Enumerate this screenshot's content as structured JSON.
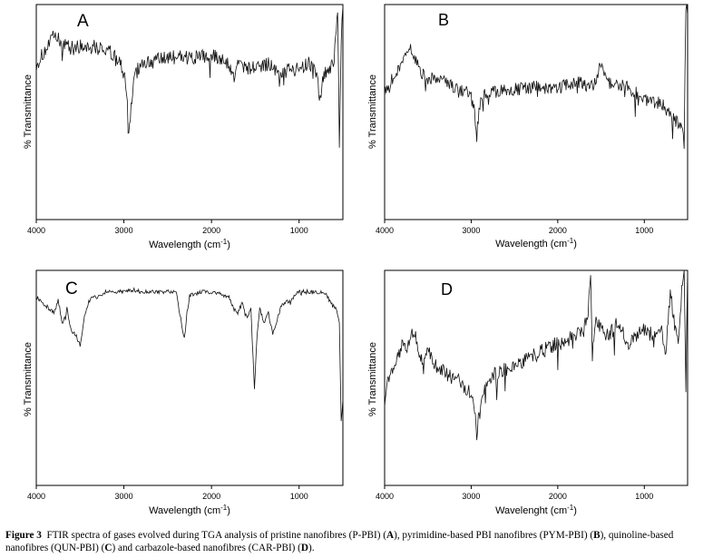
{
  "figure": {
    "caption_label": "Figure 3",
    "caption_parts": [
      {
        "text": "FTIR spectra of gases evolved during TGA analysis of pristine nanofibres (P-PBI) (",
        "bold": false
      },
      {
        "text": "A",
        "bold": true
      },
      {
        "text": "), pyrimidine-based PBI nanofibres (PYM-PBI) (",
        "bold": false
      },
      {
        "text": "B",
        "bold": true
      },
      {
        "text": "), quinoline-based nanofibres (QUN-PBI) (",
        "bold": false
      },
      {
        "text": "C",
        "bold": true
      },
      {
        "text": ") and carbazole-based nanofibres (CAR-PBI) (",
        "bold": false
      },
      {
        "text": "D",
        "bold": true
      },
      {
        "text": ").",
        "bold": false
      }
    ]
  },
  "chart_data": [
    {
      "type": "line",
      "panel_label": "A",
      "xlabel": "Wavelength (cm",
      "xlabel_sup": "-1",
      "xlabel_tail": ")",
      "ylabel": "% Transmittance",
      "xlim": [
        4000,
        500
      ],
      "ylim": [
        0,
        100
      ],
      "xticks": [
        4000,
        3000,
        2000,
        1000
      ],
      "grid": false,
      "line_color": "#111111",
      "noise": 3.5,
      "x": [
        4000,
        3800,
        3600,
        3400,
        3200,
        3050,
        2990,
        2960,
        2935,
        2910,
        2880,
        2850,
        2800,
        2600,
        2400,
        2200,
        2000,
        1900,
        1800,
        1750,
        1700,
        1600,
        1500,
        1400,
        1300,
        1200,
        1100,
        1000,
        900,
        800,
        760,
        740,
        700,
        650,
        600,
        560,
        540,
        520,
        500
      ],
      "y": [
        72,
        85,
        80,
        81,
        79,
        74,
        65,
        52,
        43,
        56,
        66,
        69,
        73,
        74,
        76,
        75,
        76,
        75,
        72,
        66,
        72,
        71,
        70,
        72,
        73,
        67,
        71,
        69,
        73,
        67,
        55,
        63,
        68,
        70,
        75,
        95,
        35,
        80,
        99
      ]
    },
    {
      "type": "line",
      "panel_label": "B",
      "xlabel": "Wavelength (cm",
      "xlabel_sup": "-1",
      "xlabel_tail": ")",
      "ylabel": "% Transmittance",
      "xlim": [
        4000,
        500
      ],
      "ylim": [
        0,
        100
      ],
      "xticks": [
        4000,
        3000,
        2000,
        1000
      ],
      "grid": false,
      "line_color": "#111111",
      "noise": 3,
      "x": [
        4000,
        3900,
        3800,
        3700,
        3600,
        3500,
        3400,
        3200,
        3100,
        3000,
        2960,
        2935,
        2910,
        2880,
        2800,
        2600,
        2400,
        2200,
        2000,
        1800,
        1600,
        1500,
        1400,
        1200,
        1000,
        900,
        800,
        700,
        600,
        560,
        540,
        520,
        500
      ],
      "y": [
        60,
        66,
        72,
        80,
        70,
        65,
        66,
        62,
        60,
        58,
        50,
        40,
        50,
        57,
        59,
        60,
        61,
        62,
        61,
        64,
        62,
        72,
        63,
        62,
        56,
        55,
        54,
        48,
        45,
        40,
        35,
        99,
        95
      ]
    },
    {
      "type": "line",
      "panel_label": "C",
      "xlabel": "Wavelength (cm",
      "xlabel_sup": "-1",
      "xlabel_tail": ")",
      "ylabel": "% Transmittance",
      "xlim": [
        4000,
        500
      ],
      "ylim": [
        0,
        100
      ],
      "xticks": [
        4000,
        3000,
        2000,
        1000
      ],
      "grid": false,
      "line_color": "#111111",
      "noise": 1,
      "x": [
        4000,
        3900,
        3800,
        3750,
        3700,
        3650,
        3600,
        3550,
        3500,
        3450,
        3400,
        3200,
        3000,
        2900,
        2800,
        2600,
        2400,
        2370,
        2340,
        2310,
        2280,
        2250,
        2200,
        2100,
        1900,
        1800,
        1750,
        1700,
        1650,
        1600,
        1550,
        1510,
        1480,
        1450,
        1400,
        1350,
        1300,
        1200,
        1100,
        1000,
        900,
        800,
        700,
        650,
        600,
        560,
        540,
        520,
        500
      ],
      "y": [
        88,
        84,
        80,
        86,
        75,
        82,
        72,
        70,
        65,
        78,
        86,
        90,
        90,
        91,
        90,
        90,
        90,
        82,
        75,
        68,
        80,
        88,
        89,
        90,
        89,
        88,
        82,
        80,
        85,
        78,
        82,
        45,
        70,
        82,
        76,
        80,
        70,
        84,
        86,
        90,
        90,
        90,
        89,
        86,
        84,
        80,
        76,
        30,
        40
      ]
    },
    {
      "type": "line",
      "panel_label": "D",
      "xlabel": "Wavelenght (cm",
      "xlabel_sup": "-1",
      "xlabel_tail": ")",
      "ylabel": "% Transmittance",
      "xlim": [
        4000,
        500
      ],
      "ylim": [
        0,
        100
      ],
      "xticks": [
        4000,
        3000,
        2000,
        1000
      ],
      "grid": false,
      "line_color": "#111111",
      "noise": 3.5,
      "x": [
        4000,
        3950,
        3900,
        3850,
        3800,
        3750,
        3700,
        3650,
        3600,
        3550,
        3500,
        3400,
        3300,
        3200,
        3100,
        3000,
        2960,
        2935,
        2910,
        2880,
        2800,
        2600,
        2400,
        2200,
        2000,
        1900,
        1800,
        1700,
        1650,
        1620,
        1600,
        1550,
        1500,
        1400,
        1300,
        1200,
        1100,
        1000,
        900,
        800,
        750,
        700,
        650,
        600,
        560,
        540,
        520,
        500
      ],
      "y": [
        40,
        50,
        55,
        60,
        65,
        62,
        68,
        72,
        60,
        55,
        62,
        55,
        52,
        50,
        47,
        42,
        35,
        20,
        35,
        43,
        50,
        54,
        58,
        62,
        66,
        67,
        70,
        72,
        82,
        100,
        60,
        78,
        72,
        70,
        76,
        66,
        70,
        72,
        70,
        72,
        62,
        90,
        75,
        68,
        95,
        100,
        40,
        100
      ]
    }
  ]
}
